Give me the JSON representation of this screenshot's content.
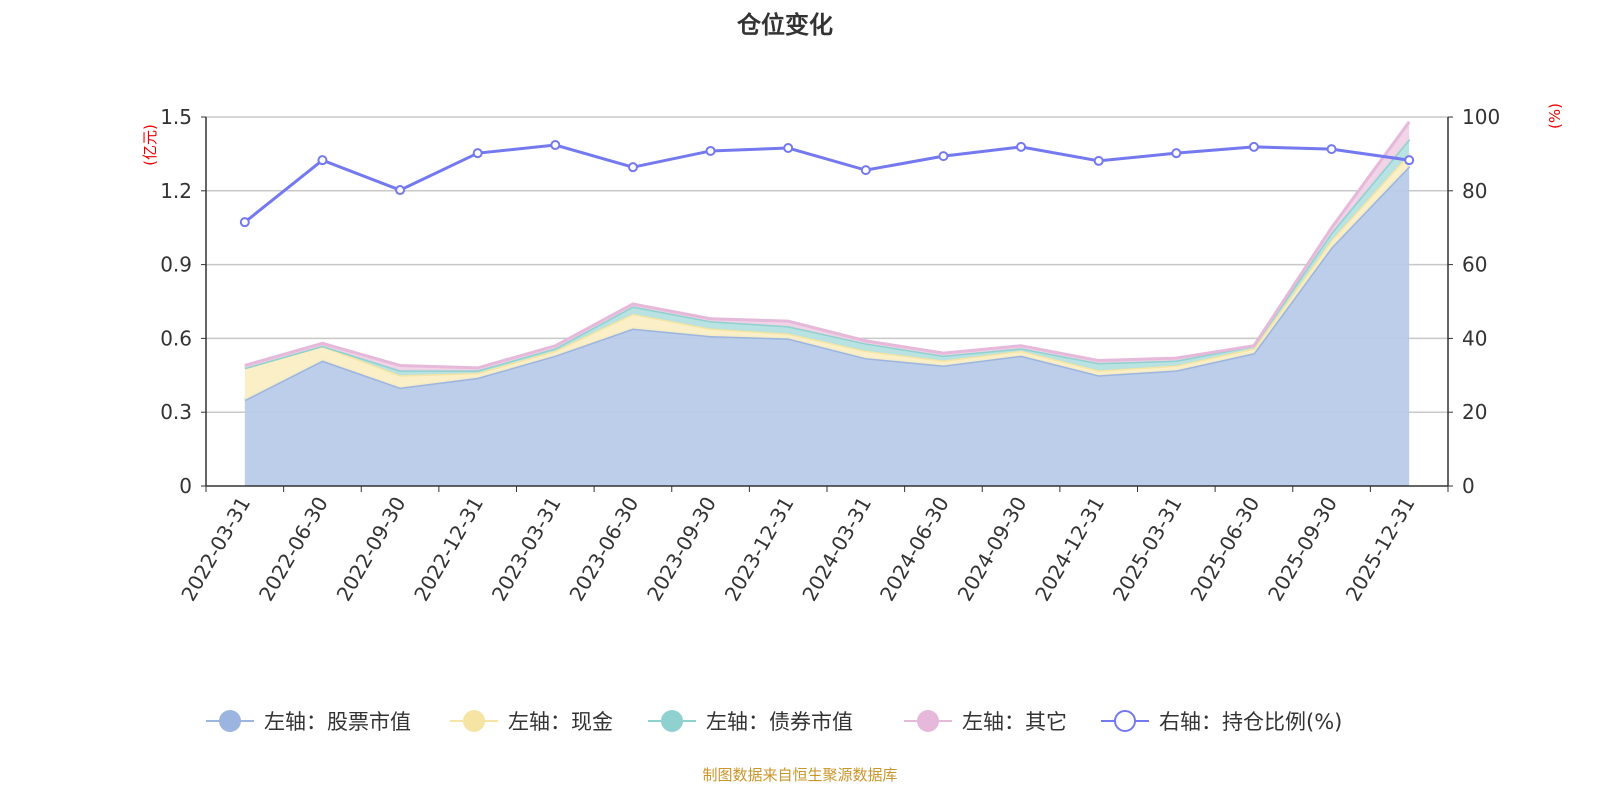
{
  "chart_data": {
    "type": "area",
    "title": "仓位变化",
    "left_axis_label": "(亿元)",
    "right_axis_label": "(%)",
    "ylim_left": [
      0,
      1.5
    ],
    "ylim_right": [
      0,
      100
    ],
    "left_ticks": [
      "0",
      "0.3",
      "0.6",
      "0.9",
      "1.2",
      "1.5"
    ],
    "right_ticks": [
      "0",
      "20",
      "40",
      "60",
      "80",
      "100"
    ],
    "grid": true,
    "legend_position": "bottom",
    "categories": [
      "2022-03-31",
      "2022-06-30",
      "2022-09-30",
      "2022-12-31",
      "2023-03-31",
      "2023-06-30",
      "2023-09-30",
      "2023-12-31",
      "2024-03-31",
      "2024-06-30",
      "2024-09-30",
      "2024-12-31",
      "2025-03-31",
      "2025-06-30",
      "2025-09-30",
      "2025-12-31"
    ],
    "series": [
      {
        "name": "左轴：股票市值",
        "axis": "left",
        "stacked": true,
        "color": "#9bb5e0",
        "fill": "#b8cbe8",
        "values": [
          0.35,
          0.51,
          0.4,
          0.44,
          0.53,
          0.64,
          0.61,
          0.6,
          0.52,
          0.49,
          0.53,
          0.45,
          0.47,
          0.54,
          0.97,
          1.3
        ]
      },
      {
        "name": "左轴：现金",
        "axis": "left",
        "stacked": true,
        "color": "#f5e4a3",
        "fill": "#faeec4",
        "values": [
          0.13,
          0.06,
          0.05,
          0.02,
          0.02,
          0.06,
          0.03,
          0.02,
          0.03,
          0.02,
          0.02,
          0.02,
          0.02,
          0.02,
          0.03,
          0.05
        ]
      },
      {
        "name": "左轴：债券市值",
        "axis": "left",
        "stacked": true,
        "color": "#8fd1cf",
        "fill": "#b5e2e1",
        "values": [
          0,
          0,
          0.02,
          0.01,
          0.01,
          0.03,
          0.03,
          0.03,
          0.03,
          0.02,
          0.01,
          0.03,
          0.02,
          0.01,
          0.03,
          0.06
        ]
      },
      {
        "name": "左轴：其它",
        "axis": "left",
        "stacked": true,
        "color": "#e6b8d9",
        "fill": "#f0d2e6",
        "values": [
          0.01,
          0.01,
          0.02,
          0.01,
          0.01,
          0.01,
          0.01,
          0.02,
          0.01,
          0.01,
          0.01,
          0.01,
          0.01,
          0.0,
          0.02,
          0.07
        ]
      },
      {
        "name": "右轴：持仓比例(%)",
        "axis": "right",
        "stacked": false,
        "color": "#7479f0",
        "values": [
          71.5,
          88.3,
          80.2,
          90.2,
          92.4,
          86.4,
          90.8,
          91.6,
          85.6,
          89.4,
          91.9,
          88.1,
          90.2,
          91.9,
          91.3,
          88.3
        ]
      }
    ]
  },
  "footer": "制图数据来自恒生聚源数据库"
}
